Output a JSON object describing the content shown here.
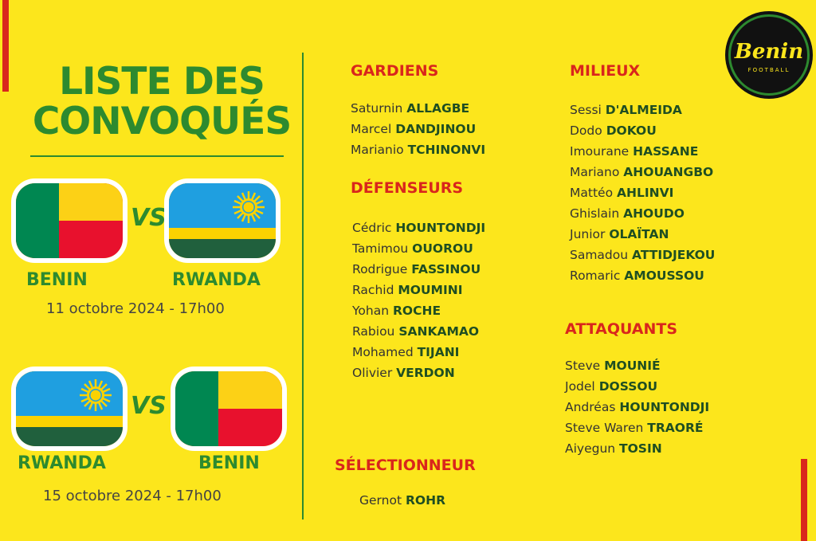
{
  "title_line1": "LISTE DES",
  "title_line2": "CONVOQUÉS",
  "logo": {
    "brand": "Benin",
    "sub": "FOOTBALL"
  },
  "colors": {
    "background": "#fce61c",
    "green": "#2d8a2f",
    "red": "#d9261c",
    "rwanda_blue": "#1f9fe0",
    "rwanda_yellow": "#fad201",
    "rwanda_green": "#20603d"
  },
  "matches": [
    {
      "home": "BENIN",
      "away": "RWANDA",
      "vs": "VS",
      "date": "11 octobre 2024 - 17h00",
      "home_flag": "benin-flag",
      "away_flag": "rwanda-flag"
    },
    {
      "home": "RWANDA",
      "away": "BENIN",
      "vs": "VS",
      "date": "15 octobre 2024 - 17h00",
      "home_flag": "rwanda-flag",
      "away_flag": "benin-flag"
    }
  ],
  "sections": {
    "gardiens": {
      "title": "GARDIENS",
      "players": [
        {
          "first": "Saturnin",
          "last": "ALLAGBE"
        },
        {
          "first": "Marcel",
          "last": "DANDJINOU"
        },
        {
          "first": "Marianio",
          "last": "TCHINONVI"
        }
      ]
    },
    "defenseurs": {
      "title": "DÉFENSEURS",
      "players": [
        {
          "first": "Cédric",
          "last": "HOUNTONDJI"
        },
        {
          "first": "Tamimou",
          "last": "OUOROU"
        },
        {
          "first": "Rodrigue",
          "last": "FASSINOU"
        },
        {
          "first": "Rachid",
          "last": "MOUMINI"
        },
        {
          "first": "Yohan",
          "last": "ROCHE"
        },
        {
          "first": "Rabiou",
          "last": "SANKAMAO"
        },
        {
          "first": "Mohamed",
          "last": "TIJANI"
        },
        {
          "first": "Olivier",
          "last": "VERDON"
        }
      ]
    },
    "selectionneur": {
      "title": "SÉLECTIONNEUR",
      "players": [
        {
          "first": "Gernot",
          "last": "ROHR"
        }
      ]
    },
    "milieux": {
      "title": "MILIEUX",
      "players": [
        {
          "first": "Sessi",
          "last": "D'ALMEIDA"
        },
        {
          "first": "Dodo",
          "last": "DOKOU"
        },
        {
          "first": "Imourane",
          "last": "HASSANE"
        },
        {
          "first": "Mariano",
          "last": "AHOUANGBO"
        },
        {
          "first": "Mattéo",
          "last": "AHLINVI"
        },
        {
          "first": "Ghislain",
          "last": "AHOUDO"
        },
        {
          "first": "Junior",
          "last": "OLAÏTAN"
        },
        {
          "first": "Samadou",
          "last": "ATTIDJEKOU"
        },
        {
          "first": "Romaric",
          "last": "AMOUSSOU"
        }
      ]
    },
    "attaquants": {
      "title": "ATTAQUANTS",
      "players": [
        {
          "first": "Steve",
          "last": "MOUNIÉ"
        },
        {
          "first": "Jodel",
          "last": "DOSSOU"
        },
        {
          "first": "Andréas",
          "last": "HOUNTONDJI"
        },
        {
          "first": "Steve Waren",
          "last": "TRAORÉ"
        },
        {
          "first": "Aiyegun",
          "last": "TOSIN"
        }
      ]
    }
  }
}
